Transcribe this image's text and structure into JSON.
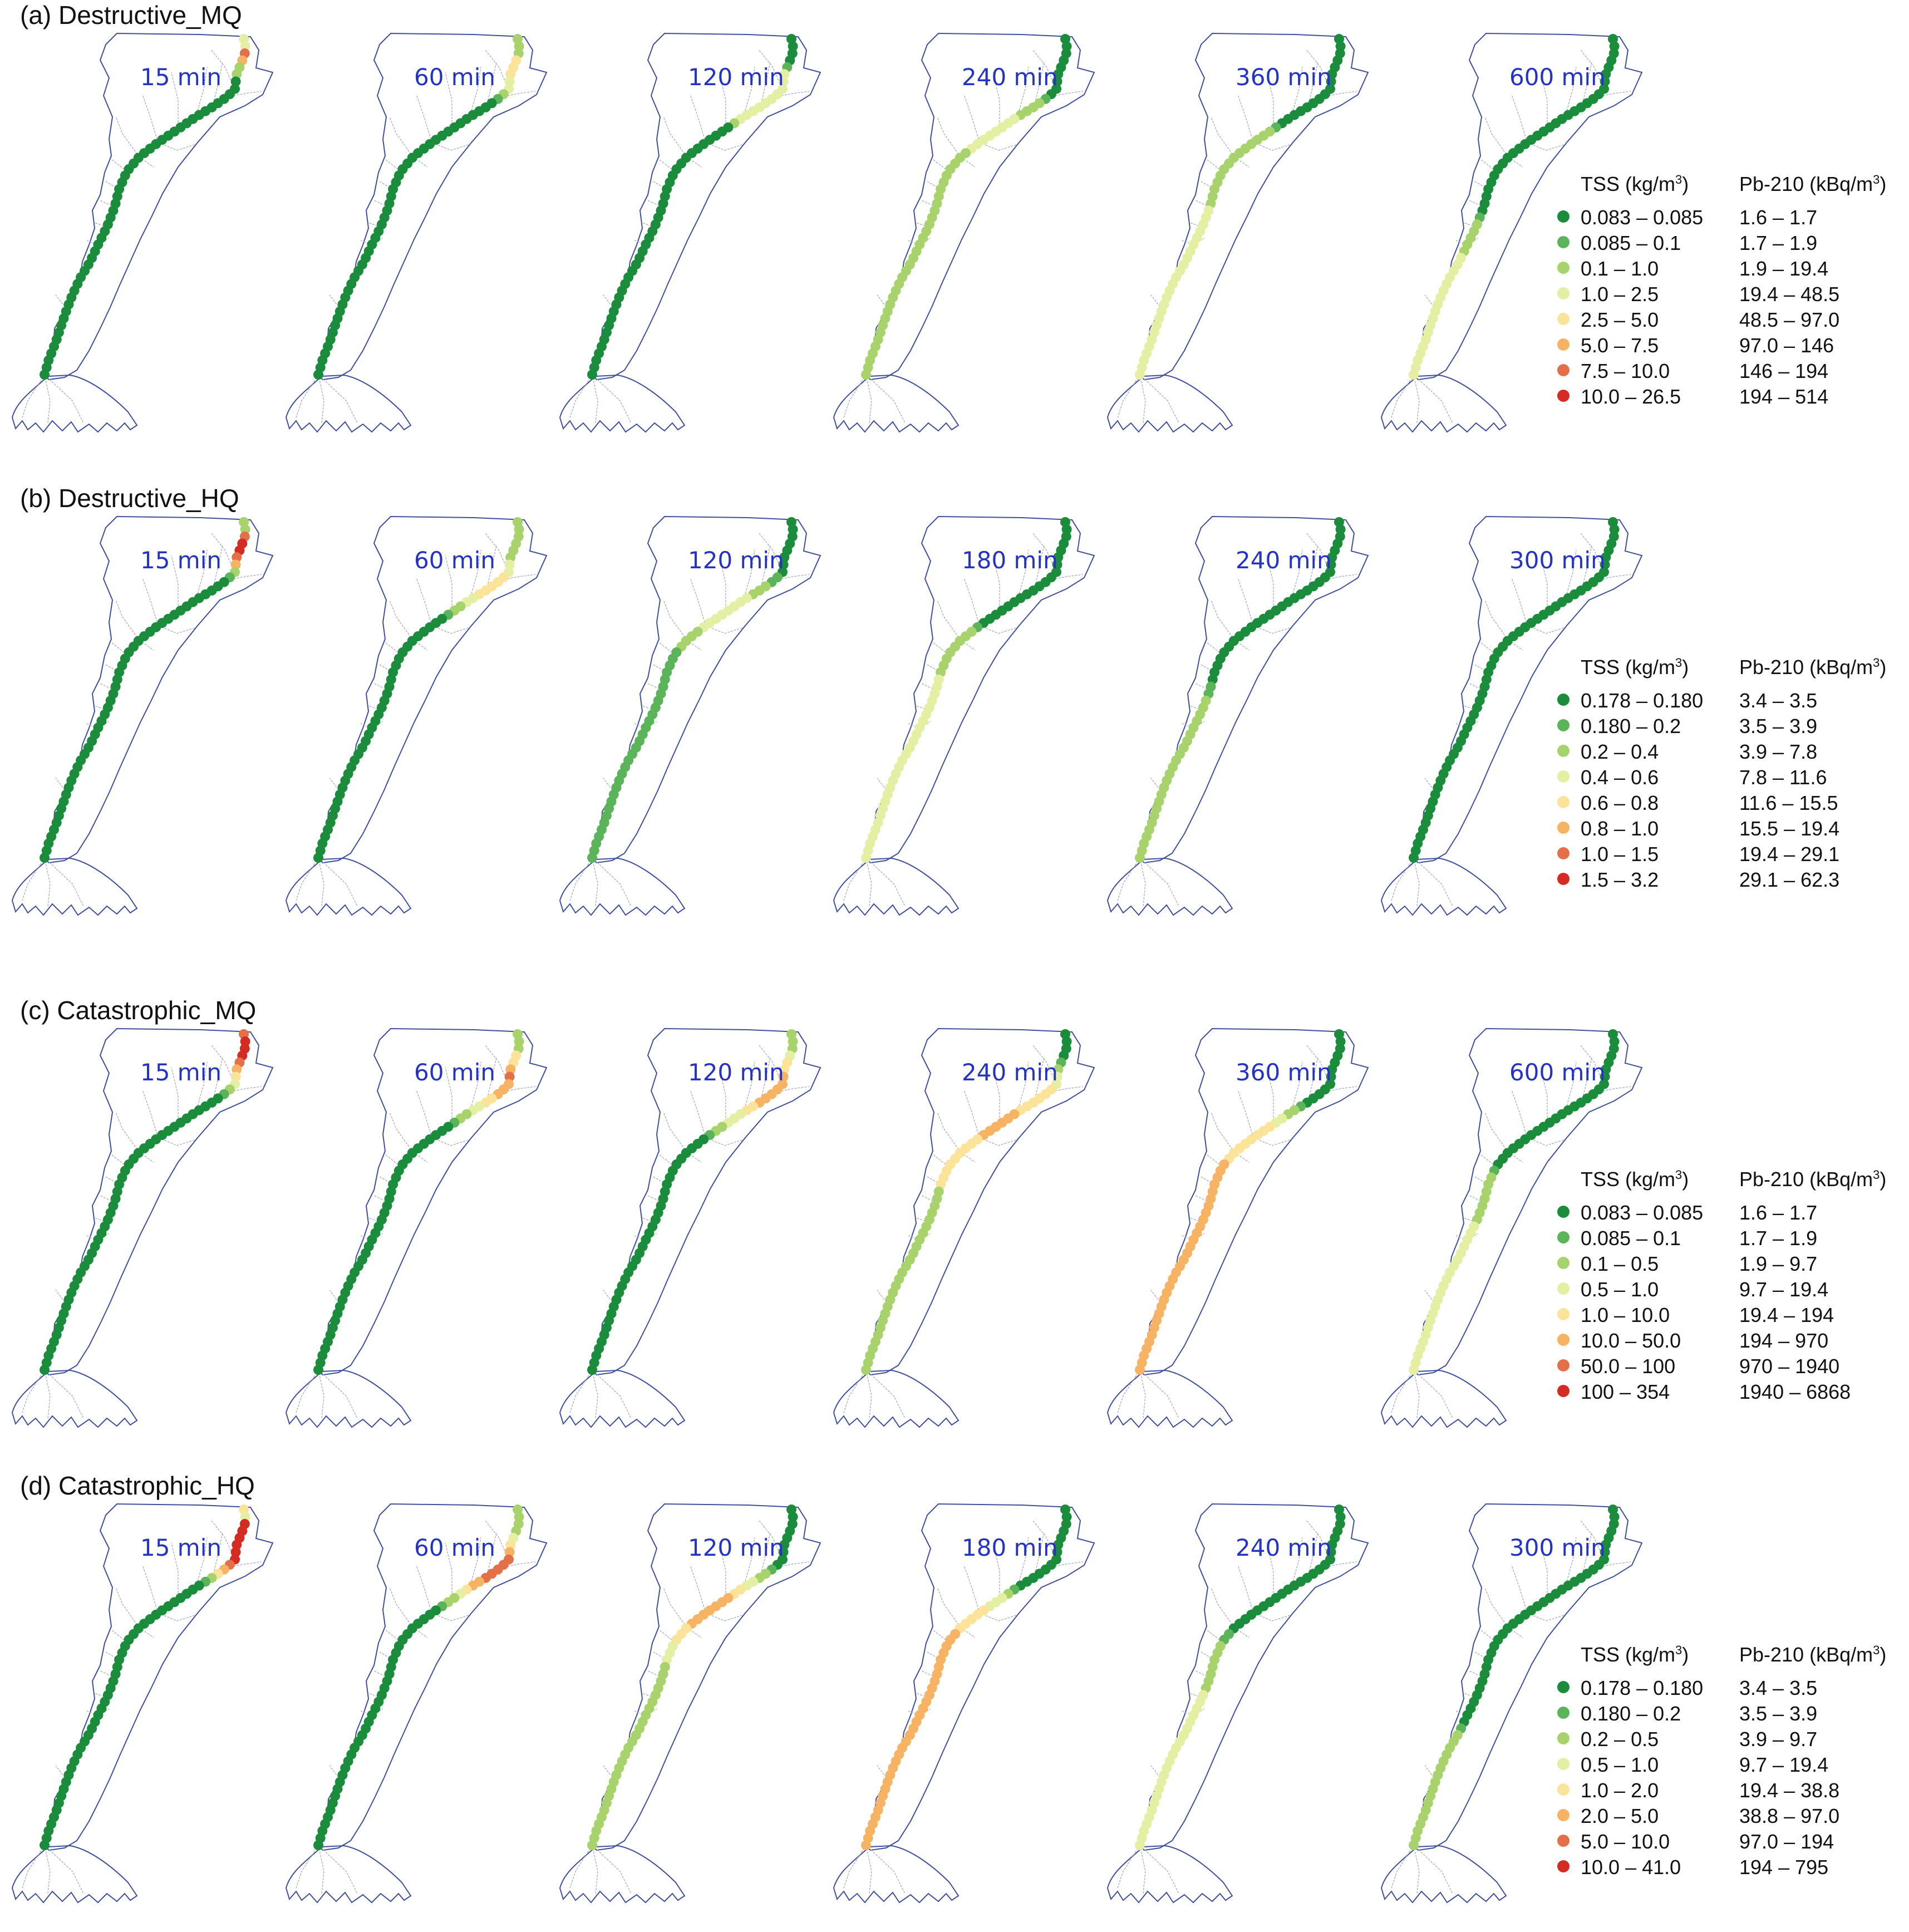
{
  "colors": {
    "c1": "#1a8c3c",
    "c2": "#5cb45a",
    "c3": "#a8d36c",
    "c4": "#e4efa4",
    "c5": "#fbe39a",
    "c6": "#f5b363",
    "c7": "#e4704a",
    "c8": "#d42b22",
    "outline": "#3f4f9c",
    "stream": "#a7adbf"
  },
  "panels": [
    {
      "title": "(a) Destructive_MQ",
      "times": [
        "15 min",
        "60 min",
        "120 min",
        "240 min",
        "360 min",
        "600 min"
      ],
      "legend": {
        "tss_header": "TSS (kg/m",
        "pb_header": "Pb-210 (kBq/m",
        "header_sup": "3",
        "header_close": ")",
        "rows": [
          {
            "tss": "0.083 – 0.085",
            "pb": "1.6 – 1.7",
            "color": "c1"
          },
          {
            "tss": "0.085 – 0.1",
            "pb": "1.7 – 1.9",
            "color": "c2"
          },
          {
            "tss": "0.1 – 1.0",
            "pb": "1.9 – 19.4",
            "color": "c3"
          },
          {
            "tss": "1.0 – 2.5",
            "pb": "19.4 – 48.5",
            "color": "c4"
          },
          {
            "tss": "2.5 – 5.0",
            "pb": "48.5 – 97.0",
            "color": "c5"
          },
          {
            "tss": "5.0 – 7.5",
            "pb": "97.0 – 146",
            "color": "c6"
          },
          {
            "tss": "7.5 – 10.0",
            "pb": "146 – 194",
            "color": "c7"
          },
          {
            "tss": "10.0 – 26.5",
            "pb": "194 – 514",
            "color": "c8"
          }
        ]
      }
    },
    {
      "title": "(b) Destructive_HQ",
      "times": [
        "15 min",
        "60 min",
        "120 min",
        "180 min",
        "240 min",
        "300 min"
      ],
      "legend": {
        "tss_header": "TSS (kg/m",
        "pb_header": "Pb-210 (kBq/m",
        "header_sup": "3",
        "header_close": ")",
        "rows": [
          {
            "tss": "0.178 – 0.180",
            "pb": "3.4 – 3.5",
            "color": "c1"
          },
          {
            "tss": "0.180 – 0.2",
            "pb": "3.5 – 3.9",
            "color": "c2"
          },
          {
            "tss": "0.2 – 0.4",
            "pb": "3.9 – 7.8",
            "color": "c3"
          },
          {
            "tss": "0.4 – 0.6",
            "pb": "7.8 – 11.6",
            "color": "c4"
          },
          {
            "tss": "0.6 – 0.8",
            "pb": "11.6 – 15.5",
            "color": "c5"
          },
          {
            "tss": "0.8 – 1.0",
            "pb": "15.5 – 19.4",
            "color": "c6"
          },
          {
            "tss": "1.0 – 1.5",
            "pb": "19.4 – 29.1",
            "color": "c7"
          },
          {
            "tss": "1.5 – 3.2",
            "pb": "29.1 – 62.3",
            "color": "c8"
          }
        ]
      }
    },
    {
      "title": "(c) Catastrophic_MQ",
      "times": [
        "15 min",
        "60 min",
        "120 min",
        "240 min",
        "360 min",
        "600 min"
      ],
      "legend": {
        "tss_header": "TSS (kg/m",
        "pb_header": "Pb-210 (kBq/m",
        "header_sup": "3",
        "header_close": ")",
        "rows": [
          {
            "tss": "0.083 – 0.085",
            "pb": "1.6 – 1.7",
            "color": "c1"
          },
          {
            "tss": "0.085 – 0.1",
            "pb": "1.7 – 1.9",
            "color": "c2"
          },
          {
            "tss": "0.1 – 0.5",
            "pb": "1.9 – 9.7",
            "color": "c3"
          },
          {
            "tss": "0.5 – 1.0",
            "pb": "9.7 – 19.4",
            "color": "c4"
          },
          {
            "tss": "1.0 – 10.0",
            "pb": "19.4 – 194",
            "color": "c5"
          },
          {
            "tss": "10.0 – 50.0",
            "pb": "194 – 970",
            "color": "c6"
          },
          {
            "tss": "50.0 – 100",
            "pb": "970 – 1940",
            "color": "c7"
          },
          {
            "tss": "100 – 354",
            "pb": "1940 – 6868",
            "color": "c8"
          }
        ]
      }
    },
    {
      "title": "(d) Catastrophic_HQ",
      "times": [
        "15 min",
        "60 min",
        "120 min",
        "180 min",
        "240 min",
        "300 min"
      ],
      "legend": {
        "tss_header": "TSS (kg/m",
        "pb_header": "Pb-210 (kBq/m",
        "header_sup": "3",
        "header_close": ")",
        "rows": [
          {
            "tss": "0.178 – 0.180",
            "pb": "3.4 – 3.5",
            "color": "c1"
          },
          {
            "tss": "0.180 – 0.2",
            "pb": "3.5 – 3.9",
            "color": "c2"
          },
          {
            "tss": "0.2 – 0.5",
            "pb": "3.9 – 9.7",
            "color": "c3"
          },
          {
            "tss": "0.5 – 1.0",
            "pb": "9.7 – 19.4",
            "color": "c4"
          },
          {
            "tss": "1.0 – 2.0",
            "pb": "19.4 – 38.8",
            "color": "c5"
          },
          {
            "tss": "2.0 – 5.0",
            "pb": "38.8 – 97.0",
            "color": "c6"
          },
          {
            "tss": "5.0 – 10.0",
            "pb": "97.0 – 194",
            "color": "c7"
          },
          {
            "tss": "10.0 – 41.0",
            "pb": "194 – 795",
            "color": "c8"
          }
        ]
      }
    }
  ]
}
